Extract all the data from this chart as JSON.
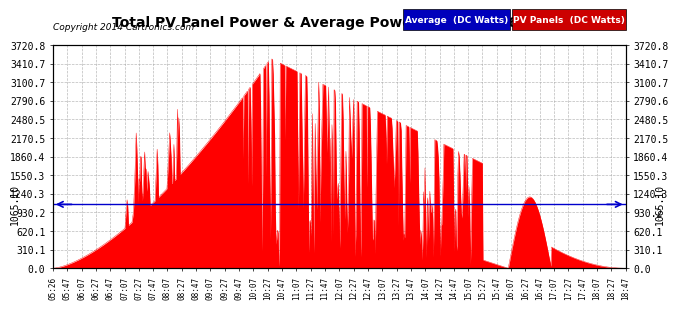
{
  "title": "Total PV Panel Power & Average Power Mon May 26 19:14",
  "copyright": "Copyright 2014 Cartronics.com",
  "y_max": 3720.8,
  "y_min": 0.0,
  "average_line": 1065.1,
  "ytick_labels": [
    "0.0",
    "310.1",
    "620.1",
    "930.2",
    "1240.3",
    "1550.3",
    "1860.4",
    "2170.5",
    "2480.5",
    "2790.6",
    "3100.7",
    "3410.7",
    "3720.8"
  ],
  "ytick_values": [
    0.0,
    310.1,
    620.1,
    930.2,
    1240.3,
    1550.3,
    1860.4,
    2170.5,
    2480.5,
    2790.6,
    3100.7,
    3410.7,
    3720.8
  ],
  "avg_label": "1065.10",
  "bg_color": "#ffffff",
  "fill_color": "#ff0000",
  "avg_line_color": "#0000cc",
  "grid_color": "#aaaaaa",
  "legend_avg_bg": "#0000bb",
  "legend_pv_bg": "#cc0000",
  "legend_avg_text": "Average  (DC Watts)",
  "legend_pv_text": "PV Panels  (DC Watts)",
  "x_tick_labels": [
    "05:26",
    "05:47",
    "06:07",
    "06:27",
    "06:47",
    "07:07",
    "07:27",
    "07:47",
    "08:07",
    "08:27",
    "08:47",
    "09:07",
    "09:27",
    "09:47",
    "10:07",
    "10:27",
    "10:47",
    "11:07",
    "11:27",
    "11:47",
    "12:07",
    "12:27",
    "12:47",
    "13:07",
    "13:27",
    "13:47",
    "14:07",
    "14:27",
    "14:47",
    "15:07",
    "15:27",
    "15:47",
    "16:07",
    "16:27",
    "16:47",
    "17:07",
    "17:27",
    "17:47",
    "18:07",
    "18:27",
    "18:47"
  ]
}
